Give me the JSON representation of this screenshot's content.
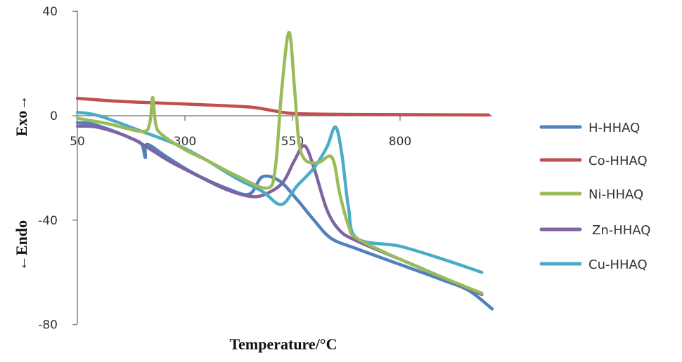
{
  "chart_data": {
    "type": "line",
    "title": "",
    "xlabel": "Temperature/°C",
    "ylabel_top": "Exo→",
    "ylabel_bottom": "←Endo",
    "xlim": [
      50,
      1020
    ],
    "ylim": [
      -80,
      40
    ],
    "x_ticks": [
      50,
      300,
      550,
      800
    ],
    "y_ticks": [
      40,
      0,
      -40,
      -80
    ],
    "grid": false,
    "legend_position": "right",
    "series": [
      {
        "name": "H-HHAQ",
        "color": "#4f81bd",
        "points": [
          [
            50,
            -2.7
          ],
          [
            80,
            -3
          ],
          [
            120,
            -5
          ],
          [
            180,
            -9
          ],
          [
            200,
            -11
          ],
          [
            208,
            -16
          ],
          [
            212,
            -11
          ],
          [
            260,
            -16
          ],
          [
            320,
            -22
          ],
          [
            400,
            -28
          ],
          [
            450,
            -30
          ],
          [
            480,
            -23.4
          ],
          [
            520,
            -25
          ],
          [
            560,
            -32
          ],
          [
            600,
            -40
          ],
          [
            640,
            -47
          ],
          [
            700,
            -51
          ],
          [
            800,
            -57
          ],
          [
            900,
            -63
          ],
          [
            960,
            -67
          ],
          [
            1014,
            -74
          ]
        ]
      },
      {
        "name": "Co-HHAQ",
        "color": "#c0504d",
        "points": [
          [
            50,
            6.7
          ],
          [
            150,
            5.5
          ],
          [
            300,
            4.5
          ],
          [
            400,
            3.8
          ],
          [
            460,
            3.2
          ],
          [
            510,
            1.8
          ],
          [
            560,
            0.8
          ],
          [
            700,
            0.5
          ],
          [
            850,
            0.4
          ],
          [
            1006,
            0.3
          ]
        ]
      },
      {
        "name": "Ni-HHAQ",
        "color": "#9bbb59",
        "points": [
          [
            50,
            -1
          ],
          [
            120,
            -3
          ],
          [
            200,
            -6
          ],
          [
            218,
            -3
          ],
          [
            225,
            7
          ],
          [
            232,
            -3
          ],
          [
            245,
            -7
          ],
          [
            300,
            -13
          ],
          [
            350,
            -17
          ],
          [
            420,
            -23
          ],
          [
            491,
            -27.7
          ],
          [
            510,
            -20
          ],
          [
            525,
            10
          ],
          [
            542,
            32
          ],
          [
            555,
            10
          ],
          [
            565,
            -10
          ],
          [
            580,
            -17
          ],
          [
            610,
            -18
          ],
          [
            642,
            -16
          ],
          [
            660,
            -30
          ],
          [
            680,
            -42
          ],
          [
            700,
            -47
          ],
          [
            800,
            -55
          ],
          [
            900,
            -62
          ],
          [
            990,
            -68
          ]
        ]
      },
      {
        "name": "Zn-HHAQ",
        "color": "#8064a2",
        "points": [
          [
            50,
            -4
          ],
          [
            100,
            -4.5
          ],
          [
            180,
            -9
          ],
          [
            260,
            -17
          ],
          [
            330,
            -23
          ],
          [
            400,
            -28.5
          ],
          [
            460,
            -31
          ],
          [
            500,
            -29
          ],
          [
            530,
            -25
          ],
          [
            555,
            -17
          ],
          [
            578,
            -11.5
          ],
          [
            600,
            -20
          ],
          [
            630,
            -36
          ],
          [
            660,
            -44
          ],
          [
            700,
            -48
          ],
          [
            800,
            -55
          ],
          [
            900,
            -62
          ],
          [
            990,
            -68.5
          ]
        ]
      },
      {
        "name": "Cu-HHAQ",
        "color": "#4bacc6",
        "points": [
          [
            50,
            1.3
          ],
          [
            100,
            0
          ],
          [
            200,
            -6
          ],
          [
            280,
            -11
          ],
          [
            350,
            -17
          ],
          [
            420,
            -24
          ],
          [
            480,
            -29
          ],
          [
            524,
            -34
          ],
          [
            560,
            -27
          ],
          [
            600,
            -20
          ],
          [
            630,
            -12
          ],
          [
            650,
            -4.3
          ],
          [
            665,
            -15
          ],
          [
            680,
            -35
          ],
          [
            700,
            -47
          ],
          [
            800,
            -50
          ],
          [
            900,
            -55
          ],
          [
            990,
            -60
          ]
        ]
      }
    ]
  }
}
